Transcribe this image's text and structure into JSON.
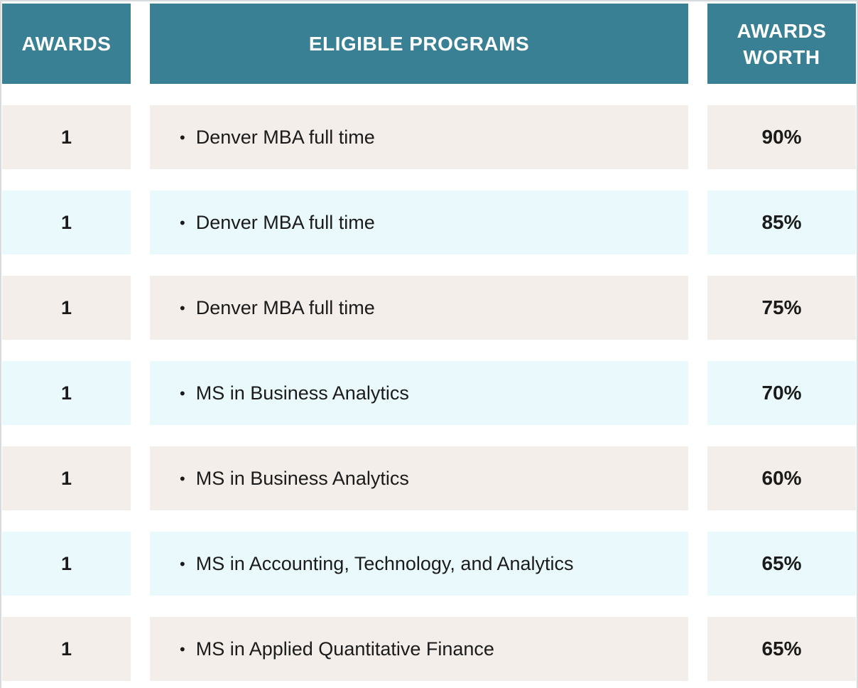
{
  "table": {
    "columns": [
      {
        "label": "AWARDS"
      },
      {
        "label": "ELIGIBLE PROGRAMS"
      },
      {
        "label": "AWARDS WORTH"
      }
    ],
    "rows": [
      {
        "awards": "1",
        "program": "Denver MBA full time",
        "worth": "90%"
      },
      {
        "awards": "1",
        "program": "Denver MBA full time",
        "worth": "85%"
      },
      {
        "awards": "1",
        "program": "Denver MBA full time",
        "worth": "75%"
      },
      {
        "awards": "1",
        "program": "MS in Business Analytics",
        "worth": "70%"
      },
      {
        "awards": "1",
        "program": "MS in Business Analytics",
        "worth": "60%"
      },
      {
        "awards": "1",
        "program": "MS in Accounting, Technology, and Analytics",
        "worth": "65%"
      },
      {
        "awards": "1",
        "program": "MS in Applied Quantitative Finance",
        "worth": "65%"
      }
    ]
  },
  "icons": {
    "bullet": "•"
  },
  "colors": {
    "header_bg": "#3a8094",
    "header_text": "#ffffff",
    "row_beige": "#f3eee9",
    "row_blue": "#eafafc",
    "text": "#1b1b1b",
    "page_border": "#d7dbde"
  }
}
